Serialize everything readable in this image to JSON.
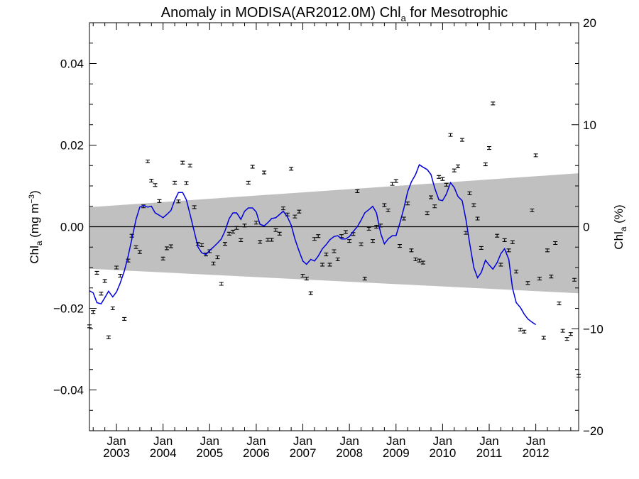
{
  "chart_data": {
    "type": "line",
    "title_main": "Anomaly in MODISA(AR2012.0M) Chl",
    "title_sub": "a",
    "title_rest": " for Mesotrophic",
    "ylabel_left": {
      "main": "Chl",
      "sub": "a",
      "rest": " (mg m",
      "sup": "−3",
      "close": ")"
    },
    "ylabel_right": {
      "main": "Chl",
      "sub": "a",
      "rest": " (%)"
    },
    "x_range": [
      2002.42,
      2012.92
    ],
    "ylim_left": [
      -0.05,
      0.05
    ],
    "ylim_right": [
      -20,
      20
    ],
    "left_ticks": [
      {
        "v": 0.04,
        "label": "0.04"
      },
      {
        "v": 0.02,
        "label": "0.02"
      },
      {
        "v": 0.0,
        "label": "0.00"
      },
      {
        "v": -0.02,
        "label": "−0.02"
      },
      {
        "v": -0.04,
        "label": "−0.04"
      }
    ],
    "right_ticks": [
      {
        "v": 20,
        "label": "20"
      },
      {
        "v": 10,
        "label": "10"
      },
      {
        "v": 0,
        "label": "0"
      },
      {
        "v": -10,
        "label": "−10"
      },
      {
        "v": -20,
        "label": "−20"
      }
    ],
    "x_ticks": [
      {
        "x": 2003.0,
        "month": "Jan",
        "year": "2003"
      },
      {
        "x": 2004.0,
        "month": "Jan",
        "year": "2004"
      },
      {
        "x": 2005.0,
        "month": "Jan",
        "year": "2005"
      },
      {
        "x": 2006.0,
        "month": "Jan",
        "year": "2006"
      },
      {
        "x": 2007.0,
        "month": "Jan",
        "year": "2007"
      },
      {
        "x": 2008.0,
        "month": "Jan",
        "year": "2008"
      },
      {
        "x": 2009.0,
        "month": "Jan",
        "year": "2009"
      },
      {
        "x": 2010.0,
        "month": "Jan",
        "year": "2010"
      },
      {
        "x": 2011.0,
        "month": "Jan",
        "year": "2011"
      },
      {
        "x": 2012.0,
        "month": "Jan",
        "year": "2012"
      }
    ],
    "zero_line": 0.0,
    "uncertainty_band": {
      "upper": [
        [
          2002.42,
          0.0048
        ],
        [
          2012.92,
          0.0131
        ]
      ],
      "lower": [
        [
          2002.42,
          -0.0103
        ],
        [
          2012.92,
          -0.0163
        ]
      ],
      "color": "#c0c0c0"
    },
    "series_colors": {
      "smoothed": "#0000dd",
      "monthly": "#000000"
    },
    "smoothed": [
      [
        2002.42,
        -0.0157
      ],
      [
        2002.5,
        -0.0162
      ],
      [
        2002.58,
        -0.0186
      ],
      [
        2002.67,
        -0.0189
      ],
      [
        2002.75,
        -0.0174
      ],
      [
        2002.83,
        -0.0158
      ],
      [
        2002.92,
        -0.0172
      ],
      [
        2003.0,
        -0.016
      ],
      [
        2003.08,
        -0.0138
      ],
      [
        2003.17,
        -0.0108
      ],
      [
        2003.25,
        -0.0072
      ],
      [
        2003.33,
        -0.003
      ],
      [
        2003.42,
        0.0018
      ],
      [
        2003.5,
        0.0048
      ],
      [
        2003.58,
        0.0052
      ],
      [
        2003.67,
        0.0048
      ],
      [
        2003.75,
        0.005
      ],
      [
        2003.83,
        0.0034
      ],
      [
        2003.92,
        0.0028
      ],
      [
        2004.0,
        0.0022
      ],
      [
        2004.08,
        0.003
      ],
      [
        2004.17,
        0.004
      ],
      [
        2004.25,
        0.0065
      ],
      [
        2004.33,
        0.0084
      ],
      [
        2004.42,
        0.0084
      ],
      [
        2004.5,
        0.0066
      ],
      [
        2004.58,
        0.003
      ],
      [
        2004.67,
        -0.0012
      ],
      [
        2004.75,
        -0.005
      ],
      [
        2004.83,
        -0.0064
      ],
      [
        2004.92,
        -0.0068
      ],
      [
        2005.0,
        -0.0058
      ],
      [
        2005.08,
        -0.005
      ],
      [
        2005.17,
        -0.004
      ],
      [
        2005.25,
        -0.003
      ],
      [
        2005.33,
        -0.001
      ],
      [
        2005.42,
        0.002
      ],
      [
        2005.5,
        0.0034
      ],
      [
        2005.58,
        0.0034
      ],
      [
        2005.67,
        0.0018
      ],
      [
        2005.75,
        0.0038
      ],
      [
        2005.83,
        0.0046
      ],
      [
        2005.92,
        0.0046
      ],
      [
        2006.0,
        0.0036
      ],
      [
        2006.08,
        0.0006
      ],
      [
        2006.17,
        0.0002
      ],
      [
        2006.25,
        0.001
      ],
      [
        2006.33,
        0.002
      ],
      [
        2006.42,
        0.0022
      ],
      [
        2006.5,
        0.003
      ],
      [
        2006.58,
        0.0038
      ],
      [
        2006.67,
        0.0024
      ],
      [
        2006.75,
        0.0004
      ],
      [
        2006.83,
        -0.003
      ],
      [
        2006.92,
        -0.006
      ],
      [
        2007.0,
        -0.0084
      ],
      [
        2007.08,
        -0.0092
      ],
      [
        2007.17,
        -0.008
      ],
      [
        2007.25,
        -0.0084
      ],
      [
        2007.33,
        -0.0072
      ],
      [
        2007.42,
        -0.0054
      ],
      [
        2007.5,
        -0.0044
      ],
      [
        2007.58,
        -0.0032
      ],
      [
        2007.67,
        -0.0024
      ],
      [
        2007.75,
        -0.0022
      ],
      [
        2007.83,
        -0.003
      ],
      [
        2007.92,
        -0.003
      ],
      [
        2008.0,
        -0.0024
      ],
      [
        2008.08,
        -0.0012
      ],
      [
        2008.17,
        0.0
      ],
      [
        2008.25,
        0.0016
      ],
      [
        2008.33,
        0.0034
      ],
      [
        2008.42,
        0.0042
      ],
      [
        2008.5,
        0.005
      ],
      [
        2008.58,
        0.0034
      ],
      [
        2008.67,
        -0.0016
      ],
      [
        2008.75,
        -0.0042
      ],
      [
        2008.83,
        -0.003
      ],
      [
        2008.92,
        -0.0022
      ],
      [
        2009.0,
        -0.0022
      ],
      [
        2009.08,
        0.0008
      ],
      [
        2009.17,
        0.0046
      ],
      [
        2009.25,
        0.0086
      ],
      [
        2009.33,
        0.011
      ],
      [
        2009.42,
        0.0128
      ],
      [
        2009.5,
        0.0152
      ],
      [
        2009.58,
        0.0146
      ],
      [
        2009.67,
        0.014
      ],
      [
        2009.75,
        0.0128
      ],
      [
        2009.83,
        0.0095
      ],
      [
        2009.92,
        0.0066
      ],
      [
        2010.0,
        0.0064
      ],
      [
        2010.08,
        0.008
      ],
      [
        2010.17,
        0.0108
      ],
      [
        2010.25,
        0.0096
      ],
      [
        2010.33,
        0.0074
      ],
      [
        2010.42,
        0.0064
      ],
      [
        2010.5,
        0.0018
      ],
      [
        2010.58,
        -0.004
      ],
      [
        2010.67,
        -0.01
      ],
      [
        2010.75,
        -0.0125
      ],
      [
        2010.83,
        -0.0112
      ],
      [
        2010.92,
        -0.0082
      ],
      [
        2011.0,
        -0.0094
      ],
      [
        2011.08,
        -0.0104
      ],
      [
        2011.17,
        -0.0088
      ],
      [
        2011.25,
        -0.0066
      ],
      [
        2011.33,
        -0.0054
      ],
      [
        2011.42,
        -0.008
      ],
      [
        2011.5,
        -0.015
      ],
      [
        2011.58,
        -0.0186
      ],
      [
        2011.67,
        -0.0198
      ],
      [
        2011.75,
        -0.0214
      ],
      [
        2011.83,
        -0.0226
      ],
      [
        2011.92,
        -0.0234
      ],
      [
        2012.0,
        -0.024
      ]
    ],
    "monthly": [
      [
        2002.42,
        -0.0244
      ],
      [
        2002.5,
        -0.0209
      ],
      [
        2002.58,
        -0.0113
      ],
      [
        2002.67,
        -0.0164
      ],
      [
        2002.75,
        -0.0133
      ],
      [
        2002.83,
        -0.0271
      ],
      [
        2002.92,
        -0.02
      ],
      [
        2003.0,
        -0.01
      ],
      [
        2003.08,
        -0.012
      ],
      [
        2003.17,
        -0.0226
      ],
      [
        2003.25,
        -0.0083
      ],
      [
        2003.33,
        -0.0022
      ],
      [
        2003.42,
        -0.005
      ],
      [
        2003.5,
        -0.0062
      ],
      [
        2003.58,
        0.005
      ],
      [
        2003.67,
        0.016
      ],
      [
        2003.75,
        0.0113
      ],
      [
        2003.83,
        0.0102
      ],
      [
        2003.92,
        0.0063
      ],
      [
        2004.0,
        -0.0078
      ],
      [
        2004.08,
        -0.0053
      ],
      [
        2004.17,
        -0.0048
      ],
      [
        2004.25,
        0.0108
      ],
      [
        2004.33,
        0.0062
      ],
      [
        2004.42,
        0.0157
      ],
      [
        2004.5,
        0.0107
      ],
      [
        2004.58,
        0.015
      ],
      [
        2004.67,
        0.0048
      ],
      [
        2004.75,
        -0.0042
      ],
      [
        2004.83,
        -0.0045
      ],
      [
        2004.92,
        -0.0068
      ],
      [
        2005.0,
        -0.006
      ],
      [
        2005.08,
        -0.009
      ],
      [
        2005.17,
        -0.0075
      ],
      [
        2005.25,
        -0.014
      ],
      [
        2005.33,
        -0.0042
      ],
      [
        2005.42,
        -0.0017
      ],
      [
        2005.5,
        -0.0012
      ],
      [
        2005.58,
        -0.0003
      ],
      [
        2005.67,
        -0.0033
      ],
      [
        2005.75,
        0.0003
      ],
      [
        2005.83,
        0.0108
      ],
      [
        2005.92,
        0.0147
      ],
      [
        2006.0,
        0.001
      ],
      [
        2006.08,
        -0.0037
      ],
      [
        2006.17,
        0.0133
      ],
      [
        2006.25,
        -0.0032
      ],
      [
        2006.33,
        -0.0032
      ],
      [
        2006.42,
        -0.0008
      ],
      [
        2006.5,
        -0.0017
      ],
      [
        2006.58,
        0.0045
      ],
      [
        2006.67,
        0.003
      ],
      [
        2006.75,
        0.0142
      ],
      [
        2006.83,
        0.0025
      ],
      [
        2006.92,
        0.0037
      ],
      [
        2007.0,
        -0.012
      ],
      [
        2007.08,
        -0.0127
      ],
      [
        2007.17,
        -0.0163
      ],
      [
        2007.25,
        -0.003
      ],
      [
        2007.33,
        -0.0023
      ],
      [
        2007.42,
        -0.0093
      ],
      [
        2007.5,
        -0.0068
      ],
      [
        2007.58,
        -0.0093
      ],
      [
        2007.67,
        -0.006
      ],
      [
        2007.75,
        -0.008
      ],
      [
        2007.83,
        -0.0023
      ],
      [
        2007.92,
        -0.0013
      ],
      [
        2008.0,
        -0.0035
      ],
      [
        2008.08,
        -0.0018
      ],
      [
        2008.17,
        0.0087
      ],
      [
        2008.25,
        -0.0043
      ],
      [
        2008.33,
        -0.0127
      ],
      [
        2008.42,
        -0.0005
      ],
      [
        2008.5,
        -0.0035
      ],
      [
        2008.58,
        0.0
      ],
      [
        2008.67,
        0.0003
      ],
      [
        2008.75,
        0.0053
      ],
      [
        2008.83,
        0.004
      ],
      [
        2008.92,
        0.0105
      ],
      [
        2009.0,
        0.0112
      ],
      [
        2009.08,
        -0.0047
      ],
      [
        2009.17,
        0.002
      ],
      [
        2009.25,
        0.0057
      ],
      [
        2009.33,
        -0.0058
      ],
      [
        2009.42,
        -0.008
      ],
      [
        2009.5,
        -0.0083
      ],
      [
        2009.58,
        -0.0088
      ],
      [
        2009.67,
        0.0033
      ],
      [
        2009.75,
        0.0072
      ],
      [
        2009.83,
        0.005
      ],
      [
        2009.92,
        0.0122
      ],
      [
        2010.0,
        0.0117
      ],
      [
        2010.08,
        0.0103
      ],
      [
        2010.17,
        0.0225
      ],
      [
        2010.25,
        0.0138
      ],
      [
        2010.33,
        0.0148
      ],
      [
        2010.42,
        0.0213
      ],
      [
        2010.5,
        -0.0015
      ],
      [
        2010.58,
        0.0082
      ],
      [
        2010.67,
        0.0053
      ],
      [
        2010.75,
        0.002
      ],
      [
        2010.83,
        -0.0052
      ],
      [
        2010.92,
        0.0153
      ],
      [
        2011.0,
        0.0193
      ],
      [
        2011.08,
        0.0302
      ],
      [
        2011.17,
        -0.0022
      ],
      [
        2011.25,
        -0.0093
      ],
      [
        2011.33,
        -0.0033
      ],
      [
        2011.42,
        -0.0058
      ],
      [
        2011.5,
        -0.0038
      ],
      [
        2011.58,
        -0.011
      ],
      [
        2011.67,
        -0.0252
      ],
      [
        2011.75,
        -0.0257
      ],
      [
        2011.83,
        -0.0138
      ],
      [
        2011.92,
        0.004
      ],
      [
        2012.0,
        0.0175
      ],
      [
        2012.08,
        -0.0127
      ],
      [
        2012.17,
        -0.0272
      ],
      [
        2012.25,
        -0.0058
      ],
      [
        2012.33,
        -0.0122
      ],
      [
        2012.42,
        -0.004
      ],
      [
        2012.5,
        -0.0188
      ],
      [
        2012.58,
        -0.0255
      ],
      [
        2012.67,
        -0.0275
      ],
      [
        2012.75,
        -0.0263
      ],
      [
        2012.83,
        -0.013
      ],
      [
        2012.92,
        -0.0365
      ]
    ]
  }
}
